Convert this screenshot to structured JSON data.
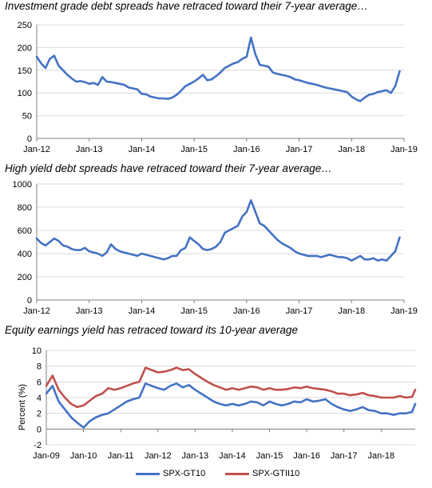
{
  "chart_data": [
    {
      "type": "line",
      "title": "Investment grade debt spreads have retraced toward their 7-year average…",
      "ylim": [
        0,
        250
      ],
      "yticks": [
        0,
        50,
        100,
        150,
        200,
        250
      ],
      "xlim": [
        "2012-01",
        "2019-01"
      ],
      "xticks": [
        "Jan-12",
        "Jan-13",
        "Jan-14",
        "Jan-15",
        "Jan-16",
        "Jan-17",
        "Jan-18",
        "Jan-19"
      ],
      "grid": "horizontal",
      "color": "#4472C4",
      "series": [
        {
          "x": [
            "2012-01",
            "2012-02",
            "2012-03",
            "2012-04",
            "2012-05",
            "2012-06",
            "2012-07",
            "2012-08",
            "2012-09",
            "2012-10",
            "2012-11",
            "2012-12",
            "2013-01",
            "2013-02",
            "2013-03",
            "2013-04",
            "2013-05",
            "2013-06",
            "2013-07",
            "2013-08",
            "2013-09",
            "2013-10",
            "2013-11",
            "2013-12",
            "2014-01",
            "2014-02",
            "2014-03",
            "2014-04",
            "2014-05",
            "2014-06",
            "2014-07",
            "2014-08",
            "2014-09",
            "2014-10",
            "2014-11",
            "2014-12",
            "2015-01",
            "2015-02",
            "2015-03",
            "2015-04",
            "2015-05",
            "2015-06",
            "2015-07",
            "2015-08",
            "2015-09",
            "2015-10",
            "2015-11",
            "2015-12",
            "2016-01",
            "2016-02",
            "2016-03",
            "2016-04",
            "2016-05",
            "2016-06",
            "2016-07",
            "2016-08",
            "2016-09",
            "2016-10",
            "2016-11",
            "2016-12",
            "2017-01",
            "2017-02",
            "2017-03",
            "2017-04",
            "2017-05",
            "2017-06",
            "2017-07",
            "2017-08",
            "2017-09",
            "2017-10",
            "2017-11",
            "2017-12",
            "2018-01",
            "2018-02",
            "2018-03",
            "2018-04",
            "2018-05",
            "2018-06",
            "2018-07",
            "2018-08",
            "2018-09",
            "2018-10",
            "2018-11",
            "2018-12"
          ],
          "values": [
            180,
            165,
            155,
            175,
            182,
            160,
            150,
            140,
            132,
            125,
            126,
            124,
            120,
            122,
            118,
            135,
            125,
            124,
            122,
            120,
            118,
            112,
            110,
            108,
            98,
            97,
            92,
            90,
            88,
            88,
            87,
            90,
            96,
            105,
            115,
            120,
            125,
            132,
            140,
            128,
            130,
            137,
            145,
            155,
            160,
            165,
            168,
            175,
            180,
            222,
            185,
            162,
            160,
            158,
            145,
            142,
            140,
            138,
            135,
            130,
            128,
            125,
            122,
            120,
            118,
            115,
            112,
            110,
            108,
            106,
            104,
            102,
            92,
            86,
            82,
            90,
            96,
            98,
            102,
            104,
            106,
            100,
            115,
            148
          ]
        }
      ]
    },
    {
      "type": "line",
      "title": "High yield debt spreads have retraced toward their 7-year average…",
      "ylim": [
        0,
        1000
      ],
      "yticks": [
        0,
        200,
        400,
        600,
        800,
        1000
      ],
      "xlim": [
        "2012-01",
        "2019-01"
      ],
      "xticks": [
        "Jan-12",
        "Jan-13",
        "Jan-14",
        "Jan-15",
        "Jan-16",
        "Jan-17",
        "Jan-18",
        "Jan-19"
      ],
      "grid": "horizontal",
      "color": "#4472C4",
      "series": [
        {
          "x": [
            "2012-01",
            "2012-02",
            "2012-03",
            "2012-04",
            "2012-05",
            "2012-06",
            "2012-07",
            "2012-08",
            "2012-09",
            "2012-10",
            "2012-11",
            "2012-12",
            "2013-01",
            "2013-02",
            "2013-03",
            "2013-04",
            "2013-05",
            "2013-06",
            "2013-07",
            "2013-08",
            "2013-09",
            "2013-10",
            "2013-11",
            "2013-12",
            "2014-01",
            "2014-02",
            "2014-03",
            "2014-04",
            "2014-05",
            "2014-06",
            "2014-07",
            "2014-08",
            "2014-09",
            "2014-10",
            "2014-11",
            "2014-12",
            "2015-01",
            "2015-02",
            "2015-03",
            "2015-04",
            "2015-05",
            "2015-06",
            "2015-07",
            "2015-08",
            "2015-09",
            "2015-10",
            "2015-11",
            "2015-12",
            "2016-01",
            "2016-02",
            "2016-03",
            "2016-04",
            "2016-05",
            "2016-06",
            "2016-07",
            "2016-08",
            "2016-09",
            "2016-10",
            "2016-11",
            "2016-12",
            "2017-01",
            "2017-02",
            "2017-03",
            "2017-04",
            "2017-05",
            "2017-06",
            "2017-07",
            "2017-08",
            "2017-09",
            "2017-10",
            "2017-11",
            "2017-12",
            "2018-01",
            "2018-02",
            "2018-03",
            "2018-04",
            "2018-05",
            "2018-06",
            "2018-07",
            "2018-08",
            "2018-09",
            "2018-10",
            "2018-11",
            "2018-12"
          ],
          "values": [
            530,
            490,
            470,
            500,
            530,
            510,
            470,
            460,
            440,
            430,
            430,
            450,
            420,
            410,
            400,
            380,
            410,
            480,
            440,
            420,
            410,
            400,
            390,
            380,
            400,
            390,
            380,
            370,
            360,
            350,
            360,
            380,
            380,
            430,
            450,
            540,
            510,
            480,
            440,
            430,
            440,
            460,
            500,
            580,
            600,
            620,
            640,
            720,
            760,
            860,
            760,
            660,
            640,
            600,
            560,
            520,
            490,
            470,
            450,
            420,
            400,
            390,
            380,
            380,
            380,
            370,
            380,
            390,
            380,
            370,
            370,
            360,
            340,
            360,
            380,
            350,
            350,
            360,
            340,
            350,
            340,
            380,
            420,
            540
          ]
        }
      ]
    },
    {
      "type": "line",
      "title": "Equity earnings yield has retraced toward its 10-year average",
      "ylabel": "Percent (%)",
      "ylim": [
        -2,
        10
      ],
      "yticks": [
        -2,
        0,
        2,
        4,
        6,
        8,
        10
      ],
      "xlim": [
        "2009-01",
        "2018-12"
      ],
      "xticks": [
        "Jan-09",
        "Jan-10",
        "Jan-11",
        "Jan-12",
        "Jan-13",
        "Jan-14",
        "Jan-15",
        "Jan-16",
        "Jan-17",
        "Jan-18"
      ],
      "grid": "horizontal",
      "legend": "bottom",
      "series": [
        {
          "name": "SPX-GT10",
          "color": "#4472C4",
          "x": [
            "2009-01",
            "2009-03",
            "2009-05",
            "2009-07",
            "2009-09",
            "2009-11",
            "2010-01",
            "2010-03",
            "2010-05",
            "2010-07",
            "2010-09",
            "2010-11",
            "2011-01",
            "2011-03",
            "2011-05",
            "2011-07",
            "2011-09",
            "2011-11",
            "2012-01",
            "2012-03",
            "2012-05",
            "2012-07",
            "2012-09",
            "2012-11",
            "2013-01",
            "2013-03",
            "2013-05",
            "2013-07",
            "2013-09",
            "2013-11",
            "2014-01",
            "2014-03",
            "2014-05",
            "2014-07",
            "2014-09",
            "2014-11",
            "2015-01",
            "2015-03",
            "2015-05",
            "2015-07",
            "2015-09",
            "2015-11",
            "2016-01",
            "2016-03",
            "2016-05",
            "2016-07",
            "2016-09",
            "2016-11",
            "2017-01",
            "2017-03",
            "2017-05",
            "2017-07",
            "2017-09",
            "2017-11",
            "2018-01",
            "2018-03",
            "2018-05",
            "2018-07",
            "2018-09",
            "2018-11",
            "2018-12"
          ],
          "values": [
            4.5,
            5.5,
            3.5,
            2.5,
            1.5,
            0.8,
            0.2,
            1.0,
            1.5,
            1.8,
            2.0,
            2.5,
            3.0,
            3.5,
            3.8,
            4.0,
            5.8,
            5.5,
            5.2,
            5.0,
            5.5,
            5.8,
            5.3,
            5.6,
            5.0,
            4.5,
            4.0,
            3.5,
            3.2,
            3.0,
            3.2,
            3.0,
            3.2,
            3.5,
            3.4,
            3.0,
            3.5,
            3.2,
            3.0,
            3.2,
            3.5,
            3.4,
            3.8,
            3.5,
            3.6,
            3.8,
            3.2,
            2.8,
            2.5,
            2.3,
            2.5,
            2.8,
            2.4,
            2.3,
            2.0,
            2.0,
            1.8,
            2.0,
            2.0,
            2.2,
            3.2
          ]
        },
        {
          "name": "SPX-GTII10",
          "color": "#C0504D",
          "x": [
            "2009-01",
            "2009-03",
            "2009-05",
            "2009-07",
            "2009-09",
            "2009-11",
            "2010-01",
            "2010-03",
            "2010-05",
            "2010-07",
            "2010-09",
            "2010-11",
            "2011-01",
            "2011-03",
            "2011-05",
            "2011-07",
            "2011-09",
            "2011-11",
            "2012-01",
            "2012-03",
            "2012-05",
            "2012-07",
            "2012-09",
            "2012-11",
            "2013-01",
            "2013-03",
            "2013-05",
            "2013-07",
            "2013-09",
            "2013-11",
            "2014-01",
            "2014-03",
            "2014-05",
            "2014-07",
            "2014-09",
            "2014-11",
            "2015-01",
            "2015-03",
            "2015-05",
            "2015-07",
            "2015-09",
            "2015-11",
            "2016-01",
            "2016-03",
            "2016-05",
            "2016-07",
            "2016-09",
            "2016-11",
            "2017-01",
            "2017-03",
            "2017-05",
            "2017-07",
            "2017-09",
            "2017-11",
            "2018-01",
            "2018-03",
            "2018-05",
            "2018-07",
            "2018-09",
            "2018-11",
            "2018-12"
          ],
          "values": [
            5.5,
            6.8,
            5.0,
            4.0,
            3.2,
            2.8,
            3.0,
            3.6,
            4.2,
            4.5,
            5.2,
            5.0,
            5.2,
            5.5,
            5.8,
            6.0,
            7.8,
            7.5,
            7.2,
            7.3,
            7.5,
            7.8,
            7.5,
            7.6,
            7.0,
            6.5,
            6.0,
            5.6,
            5.3,
            5.0,
            5.2,
            5.0,
            5.2,
            5.4,
            5.3,
            5.0,
            5.2,
            5.0,
            5.0,
            5.1,
            5.3,
            5.2,
            5.4,
            5.2,
            5.1,
            5.0,
            4.8,
            4.5,
            4.5,
            4.3,
            4.4,
            4.6,
            4.3,
            4.2,
            4.0,
            4.0,
            4.0,
            4.2,
            4.0,
            4.1,
            5.0
          ]
        }
      ]
    }
  ]
}
